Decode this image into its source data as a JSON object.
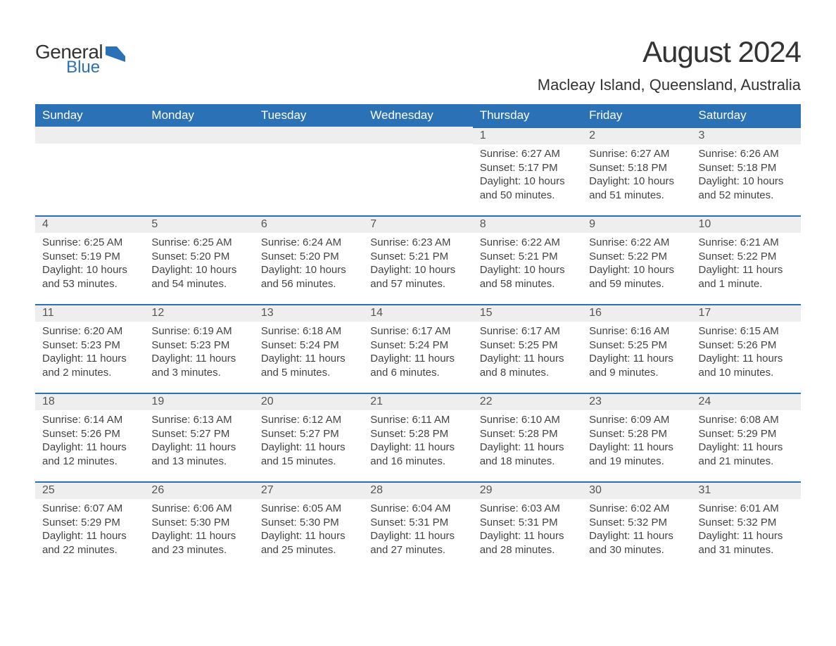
{
  "logo": {
    "general": "General",
    "blue": "Blue"
  },
  "title": "August 2024",
  "location": "Macleay Island, Queensland, Australia",
  "colors": {
    "header_bar": "#2a72b5",
    "daynum_bg": "#eeeeee",
    "daynum_border": "#2a72b5",
    "text": "#333333",
    "body_text": "#444444",
    "background": "#ffffff"
  },
  "typography": {
    "title_fontsize": 42,
    "location_fontsize": 22,
    "dow_fontsize": 17,
    "daynum_fontsize": 16,
    "body_fontsize": 15
  },
  "days_of_week": [
    "Sunday",
    "Monday",
    "Tuesday",
    "Wednesday",
    "Thursday",
    "Friday",
    "Saturday"
  ],
  "weeks": [
    [
      {
        "blank": true
      },
      {
        "blank": true
      },
      {
        "blank": true
      },
      {
        "blank": true
      },
      {
        "num": "1",
        "sunrise": "Sunrise: 6:27 AM",
        "sunset": "Sunset: 5:17 PM",
        "daylight": "Daylight: 10 hours and 50 minutes."
      },
      {
        "num": "2",
        "sunrise": "Sunrise: 6:27 AM",
        "sunset": "Sunset: 5:18 PM",
        "daylight": "Daylight: 10 hours and 51 minutes."
      },
      {
        "num": "3",
        "sunrise": "Sunrise: 6:26 AM",
        "sunset": "Sunset: 5:18 PM",
        "daylight": "Daylight: 10 hours and 52 minutes."
      }
    ],
    [
      {
        "num": "4",
        "sunrise": "Sunrise: 6:25 AM",
        "sunset": "Sunset: 5:19 PM",
        "daylight": "Daylight: 10 hours and 53 minutes."
      },
      {
        "num": "5",
        "sunrise": "Sunrise: 6:25 AM",
        "sunset": "Sunset: 5:20 PM",
        "daylight": "Daylight: 10 hours and 54 minutes."
      },
      {
        "num": "6",
        "sunrise": "Sunrise: 6:24 AM",
        "sunset": "Sunset: 5:20 PM",
        "daylight": "Daylight: 10 hours and 56 minutes."
      },
      {
        "num": "7",
        "sunrise": "Sunrise: 6:23 AM",
        "sunset": "Sunset: 5:21 PM",
        "daylight": "Daylight: 10 hours and 57 minutes."
      },
      {
        "num": "8",
        "sunrise": "Sunrise: 6:22 AM",
        "sunset": "Sunset: 5:21 PM",
        "daylight": "Daylight: 10 hours and 58 minutes."
      },
      {
        "num": "9",
        "sunrise": "Sunrise: 6:22 AM",
        "sunset": "Sunset: 5:22 PM",
        "daylight": "Daylight: 10 hours and 59 minutes."
      },
      {
        "num": "10",
        "sunrise": "Sunrise: 6:21 AM",
        "sunset": "Sunset: 5:22 PM",
        "daylight": "Daylight: 11 hours and 1 minute."
      }
    ],
    [
      {
        "num": "11",
        "sunrise": "Sunrise: 6:20 AM",
        "sunset": "Sunset: 5:23 PM",
        "daylight": "Daylight: 11 hours and 2 minutes."
      },
      {
        "num": "12",
        "sunrise": "Sunrise: 6:19 AM",
        "sunset": "Sunset: 5:23 PM",
        "daylight": "Daylight: 11 hours and 3 minutes."
      },
      {
        "num": "13",
        "sunrise": "Sunrise: 6:18 AM",
        "sunset": "Sunset: 5:24 PM",
        "daylight": "Daylight: 11 hours and 5 minutes."
      },
      {
        "num": "14",
        "sunrise": "Sunrise: 6:17 AM",
        "sunset": "Sunset: 5:24 PM",
        "daylight": "Daylight: 11 hours and 6 minutes."
      },
      {
        "num": "15",
        "sunrise": "Sunrise: 6:17 AM",
        "sunset": "Sunset: 5:25 PM",
        "daylight": "Daylight: 11 hours and 8 minutes."
      },
      {
        "num": "16",
        "sunrise": "Sunrise: 6:16 AM",
        "sunset": "Sunset: 5:25 PM",
        "daylight": "Daylight: 11 hours and 9 minutes."
      },
      {
        "num": "17",
        "sunrise": "Sunrise: 6:15 AM",
        "sunset": "Sunset: 5:26 PM",
        "daylight": "Daylight: 11 hours and 10 minutes."
      }
    ],
    [
      {
        "num": "18",
        "sunrise": "Sunrise: 6:14 AM",
        "sunset": "Sunset: 5:26 PM",
        "daylight": "Daylight: 11 hours and 12 minutes."
      },
      {
        "num": "19",
        "sunrise": "Sunrise: 6:13 AM",
        "sunset": "Sunset: 5:27 PM",
        "daylight": "Daylight: 11 hours and 13 minutes."
      },
      {
        "num": "20",
        "sunrise": "Sunrise: 6:12 AM",
        "sunset": "Sunset: 5:27 PM",
        "daylight": "Daylight: 11 hours and 15 minutes."
      },
      {
        "num": "21",
        "sunrise": "Sunrise: 6:11 AM",
        "sunset": "Sunset: 5:28 PM",
        "daylight": "Daylight: 11 hours and 16 minutes."
      },
      {
        "num": "22",
        "sunrise": "Sunrise: 6:10 AM",
        "sunset": "Sunset: 5:28 PM",
        "daylight": "Daylight: 11 hours and 18 minutes."
      },
      {
        "num": "23",
        "sunrise": "Sunrise: 6:09 AM",
        "sunset": "Sunset: 5:28 PM",
        "daylight": "Daylight: 11 hours and 19 minutes."
      },
      {
        "num": "24",
        "sunrise": "Sunrise: 6:08 AM",
        "sunset": "Sunset: 5:29 PM",
        "daylight": "Daylight: 11 hours and 21 minutes."
      }
    ],
    [
      {
        "num": "25",
        "sunrise": "Sunrise: 6:07 AM",
        "sunset": "Sunset: 5:29 PM",
        "daylight": "Daylight: 11 hours and 22 minutes."
      },
      {
        "num": "26",
        "sunrise": "Sunrise: 6:06 AM",
        "sunset": "Sunset: 5:30 PM",
        "daylight": "Daylight: 11 hours and 23 minutes."
      },
      {
        "num": "27",
        "sunrise": "Sunrise: 6:05 AM",
        "sunset": "Sunset: 5:30 PM",
        "daylight": "Daylight: 11 hours and 25 minutes."
      },
      {
        "num": "28",
        "sunrise": "Sunrise: 6:04 AM",
        "sunset": "Sunset: 5:31 PM",
        "daylight": "Daylight: 11 hours and 27 minutes."
      },
      {
        "num": "29",
        "sunrise": "Sunrise: 6:03 AM",
        "sunset": "Sunset: 5:31 PM",
        "daylight": "Daylight: 11 hours and 28 minutes."
      },
      {
        "num": "30",
        "sunrise": "Sunrise: 6:02 AM",
        "sunset": "Sunset: 5:32 PM",
        "daylight": "Daylight: 11 hours and 30 minutes."
      },
      {
        "num": "31",
        "sunrise": "Sunrise: 6:01 AM",
        "sunset": "Sunset: 5:32 PM",
        "daylight": "Daylight: 11 hours and 31 minutes."
      }
    ]
  ]
}
